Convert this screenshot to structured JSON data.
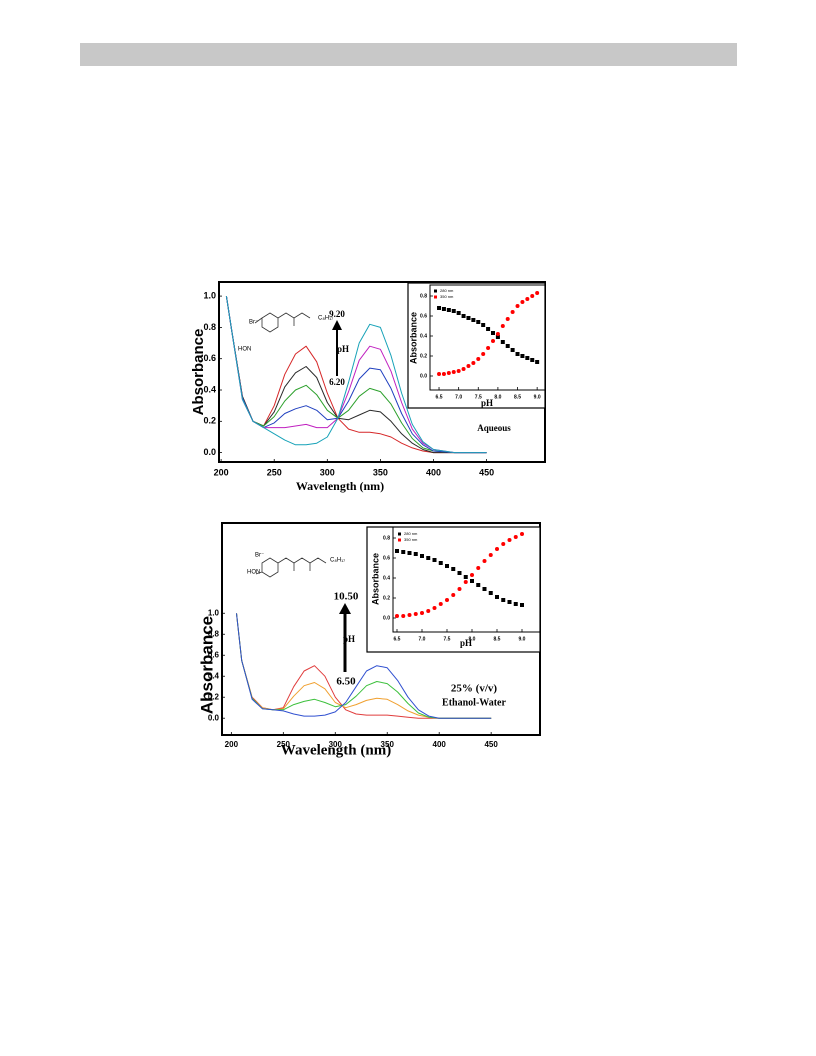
{
  "chart_data": [
    {
      "type": "line",
      "x_label": "Wavelength (nm)",
      "y_label": "Absorbance",
      "x": [
        205,
        210,
        220,
        230,
        240,
        250,
        260,
        270,
        280,
        290,
        300,
        310,
        320,
        330,
        340,
        350,
        360,
        370,
        380,
        390,
        400,
        420,
        450
      ],
      "series": [
        {
          "color": "#d62728",
          "values": [
            1.0,
            0.78,
            0.36,
            0.2,
            0.17,
            0.3,
            0.5,
            0.63,
            0.68,
            0.58,
            0.38,
            0.22,
            0.15,
            0.13,
            0.13,
            0.12,
            0.1,
            0.06,
            0.03,
            0.01,
            0.0,
            0.0,
            0.0
          ]
        },
        {
          "color": "#2a2a2a",
          "values": [
            1.0,
            0.78,
            0.36,
            0.2,
            0.17,
            0.26,
            0.42,
            0.51,
            0.55,
            0.48,
            0.32,
            0.22,
            0.21,
            0.24,
            0.27,
            0.26,
            0.2,
            0.12,
            0.06,
            0.02,
            0.0,
            0.0,
            0.0
          ]
        },
        {
          "color": "#2ca02c",
          "values": [
            1.0,
            0.78,
            0.35,
            0.2,
            0.17,
            0.23,
            0.33,
            0.4,
            0.43,
            0.37,
            0.27,
            0.22,
            0.27,
            0.36,
            0.41,
            0.39,
            0.31,
            0.19,
            0.09,
            0.03,
            0.01,
            0.0,
            0.0
          ]
        },
        {
          "color": "#1f3fbf",
          "values": [
            1.0,
            0.78,
            0.35,
            0.2,
            0.16,
            0.19,
            0.25,
            0.28,
            0.3,
            0.27,
            0.21,
            0.22,
            0.33,
            0.47,
            0.54,
            0.53,
            0.41,
            0.25,
            0.12,
            0.05,
            0.01,
            0.0,
            0.0
          ]
        },
        {
          "color": "#c020c0",
          "values": [
            1.0,
            0.78,
            0.34,
            0.2,
            0.16,
            0.16,
            0.16,
            0.17,
            0.18,
            0.16,
            0.16,
            0.22,
            0.39,
            0.59,
            0.68,
            0.66,
            0.52,
            0.32,
            0.15,
            0.06,
            0.02,
            0.0,
            0.0
          ]
        },
        {
          "color": "#17a2b8",
          "values": [
            1.0,
            0.78,
            0.34,
            0.2,
            0.16,
            0.12,
            0.08,
            0.05,
            0.05,
            0.06,
            0.1,
            0.22,
            0.45,
            0.7,
            0.82,
            0.8,
            0.62,
            0.38,
            0.18,
            0.07,
            0.02,
            0.0,
            0.0
          ]
        }
      ],
      "xlim": [
        198,
        505
      ],
      "ylim": [
        -0.06,
        1.09
      ],
      "xticks": [
        200,
        250,
        300,
        350,
        400,
        450
      ],
      "yticks": [
        {
          "value": 0,
          "label": "0.0"
        },
        0.2,
        0.4,
        0.6,
        0.8,
        {
          "value": 1,
          "label": "1.0"
        }
      ],
      "annotations": [
        "9.20",
        "pH",
        "6.20",
        "Aqueous"
      ],
      "structure_labels": [
        "Br⁻",
        "HON",
        "C₈H₁₇"
      ]
    },
    {
      "type": "scatter",
      "x_label": "pH",
      "y_label": "Absorbance",
      "x": [
        6.5,
        6.625,
        6.75,
        6.875,
        7.0,
        7.125,
        7.25,
        7.375,
        7.5,
        7.625,
        7.75,
        7.875,
        8.0,
        8.125,
        8.25,
        8.375,
        8.5,
        8.625,
        8.75,
        8.875,
        9.0
      ],
      "series": [
        {
          "name": "280 nm",
          "color": "#000000",
          "values": [
            0.68,
            0.67,
            0.66,
            0.65,
            0.63,
            0.6,
            0.58,
            0.56,
            0.54,
            0.51,
            0.47,
            0.43,
            0.39,
            0.34,
            0.3,
            0.26,
            0.22,
            0.2,
            0.18,
            0.16,
            0.14
          ]
        },
        {
          "name": "350 nm",
          "color": "#ff0000",
          "values": [
            0.02,
            0.02,
            0.03,
            0.04,
            0.05,
            0.07,
            0.1,
            0.13,
            0.17,
            0.22,
            0.28,
            0.35,
            0.42,
            0.5,
            0.57,
            0.64,
            0.7,
            0.74,
            0.77,
            0.8,
            0.83
          ]
        }
      ],
      "xlim": [
        6.27,
        9.2
      ],
      "ylim": [
        -0.14,
        0.91
      ],
      "xticks": [
        6.5,
        {
          "value": 7,
          "label": "7.0"
        },
        7.5,
        {
          "value": 8,
          "label": "8.0"
        },
        8.5,
        {
          "value": 9,
          "label": "9.0"
        }
      ],
      "yticks": [
        {
          "value": 0,
          "label": "0.0"
        },
        0.2,
        0.4,
        0.6,
        0.8
      ],
      "legend": "upper left"
    },
    {
      "type": "line",
      "x_label": "Wavelength (nm)",
      "y_label": "Absorbance",
      "x": [
        205,
        210,
        220,
        230,
        240,
        250,
        260,
        270,
        280,
        290,
        300,
        310,
        320,
        330,
        340,
        350,
        360,
        370,
        380,
        390,
        400,
        420,
        450
      ],
      "series": [
        {
          "color": "#e03c3c",
          "values": [
            1.0,
            0.55,
            0.2,
            0.1,
            0.08,
            0.1,
            0.3,
            0.45,
            0.5,
            0.4,
            0.2,
            0.08,
            0.04,
            0.03,
            0.03,
            0.03,
            0.02,
            0.01,
            0.0,
            0.0,
            0.0,
            0.0,
            0.0
          ]
        },
        {
          "color": "#f0a030",
          "values": [
            1.0,
            0.55,
            0.19,
            0.1,
            0.08,
            0.09,
            0.21,
            0.31,
            0.34,
            0.28,
            0.15,
            0.1,
            0.13,
            0.17,
            0.19,
            0.18,
            0.13,
            0.07,
            0.03,
            0.01,
            0.0,
            0.0,
            0.0
          ]
        },
        {
          "color": "#3cc03c",
          "values": [
            1.0,
            0.55,
            0.19,
            0.09,
            0.08,
            0.08,
            0.13,
            0.16,
            0.18,
            0.15,
            0.11,
            0.13,
            0.21,
            0.31,
            0.35,
            0.33,
            0.25,
            0.14,
            0.05,
            0.01,
            0.0,
            0.0,
            0.0
          ]
        },
        {
          "color": "#3050d0",
          "values": [
            1.0,
            0.55,
            0.18,
            0.09,
            0.08,
            0.07,
            0.04,
            0.02,
            0.02,
            0.03,
            0.06,
            0.15,
            0.3,
            0.45,
            0.5,
            0.48,
            0.36,
            0.2,
            0.08,
            0.02,
            0.0,
            0.0,
            0.0
          ]
        }
      ],
      "xlim": [
        191,
        497
      ],
      "ylim": [
        -0.16,
        1.86
      ],
      "xticks": [
        200,
        250,
        300,
        350,
        400,
        450
      ],
      "yticks": [
        {
          "value": 0,
          "label": "0.0"
        },
        0.2,
        0.4,
        0.6,
        0.8,
        {
          "value": 1,
          "label": "1.0"
        }
      ],
      "annotations": [
        "10.50",
        "pH",
        "6.50",
        "25% (v/v)",
        "Ethanol-Water"
      ],
      "structure_labels": [
        "Br⁻",
        "HON",
        "C₈H₁₇"
      ]
    },
    {
      "type": "scatter",
      "x_label": "pH",
      "y_label": "Absorbance",
      "x": [
        6.5,
        6.625,
        6.75,
        6.875,
        7.0,
        7.125,
        7.25,
        7.375,
        7.5,
        7.625,
        7.75,
        7.875,
        8.0,
        8.125,
        8.25,
        8.375,
        8.5,
        8.625,
        8.75,
        8.875,
        9.0
      ],
      "series": [
        {
          "name": "280 nm",
          "color": "#000000",
          "values": [
            0.67,
            0.66,
            0.65,
            0.64,
            0.62,
            0.6,
            0.58,
            0.55,
            0.52,
            0.49,
            0.45,
            0.41,
            0.37,
            0.33,
            0.29,
            0.25,
            0.21,
            0.18,
            0.16,
            0.14,
            0.13
          ]
        },
        {
          "name": "350 nm",
          "color": "#ff0000",
          "values": [
            0.02,
            0.02,
            0.03,
            0.04,
            0.05,
            0.07,
            0.1,
            0.14,
            0.18,
            0.23,
            0.29,
            0.36,
            0.43,
            0.5,
            0.57,
            0.63,
            0.69,
            0.74,
            0.78,
            0.81,
            0.84
          ]
        }
      ],
      "xlim": [
        6.42,
        9.36
      ],
      "ylim": [
        -0.14,
        0.91
      ],
      "xticks": [
        6.5,
        {
          "value": 7,
          "label": "7.0"
        },
        7.5,
        {
          "value": 8,
          "label": "8.0"
        },
        8.5,
        {
          "value": 9,
          "label": "9.0"
        }
      ],
      "yticks": [
        {
          "value": 0,
          "label": "0.0"
        },
        0.2,
        0.4,
        0.6,
        0.8
      ],
      "legend": "upper left"
    }
  ]
}
